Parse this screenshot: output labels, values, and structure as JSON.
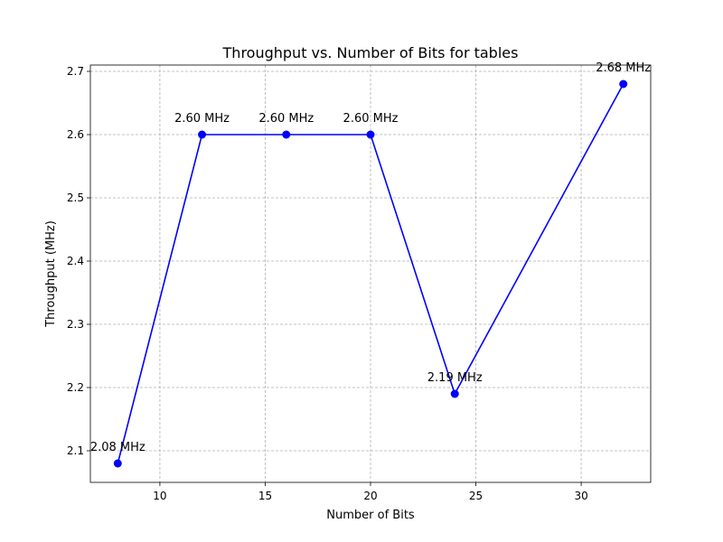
{
  "chart_data": {
    "type": "line",
    "title": "Throughput vs. Number of Bits for tables",
    "xlabel": "Number of Bits",
    "ylabel": "Throughput (MHz)",
    "xlim": [
      6.7,
      33.3
    ],
    "ylim": [
      2.05,
      2.71
    ],
    "xticks": [
      10,
      15,
      20,
      25,
      30
    ],
    "yticks": [
      2.1,
      2.2,
      2.3,
      2.4,
      2.5,
      2.6,
      2.7
    ],
    "grid": true,
    "series": [
      {
        "color": "#0000ff",
        "marker": "circle",
        "x": [
          8,
          12,
          16,
          20,
          24,
          32
        ],
        "y": [
          2.08,
          2.6,
          2.6,
          2.6,
          2.19,
          2.68
        ],
        "labels": [
          "2.08 MHz",
          "2.60 MHz",
          "2.60 MHz",
          "2.60 MHz",
          "2.19 MHz",
          "2.68 MHz"
        ]
      }
    ]
  }
}
